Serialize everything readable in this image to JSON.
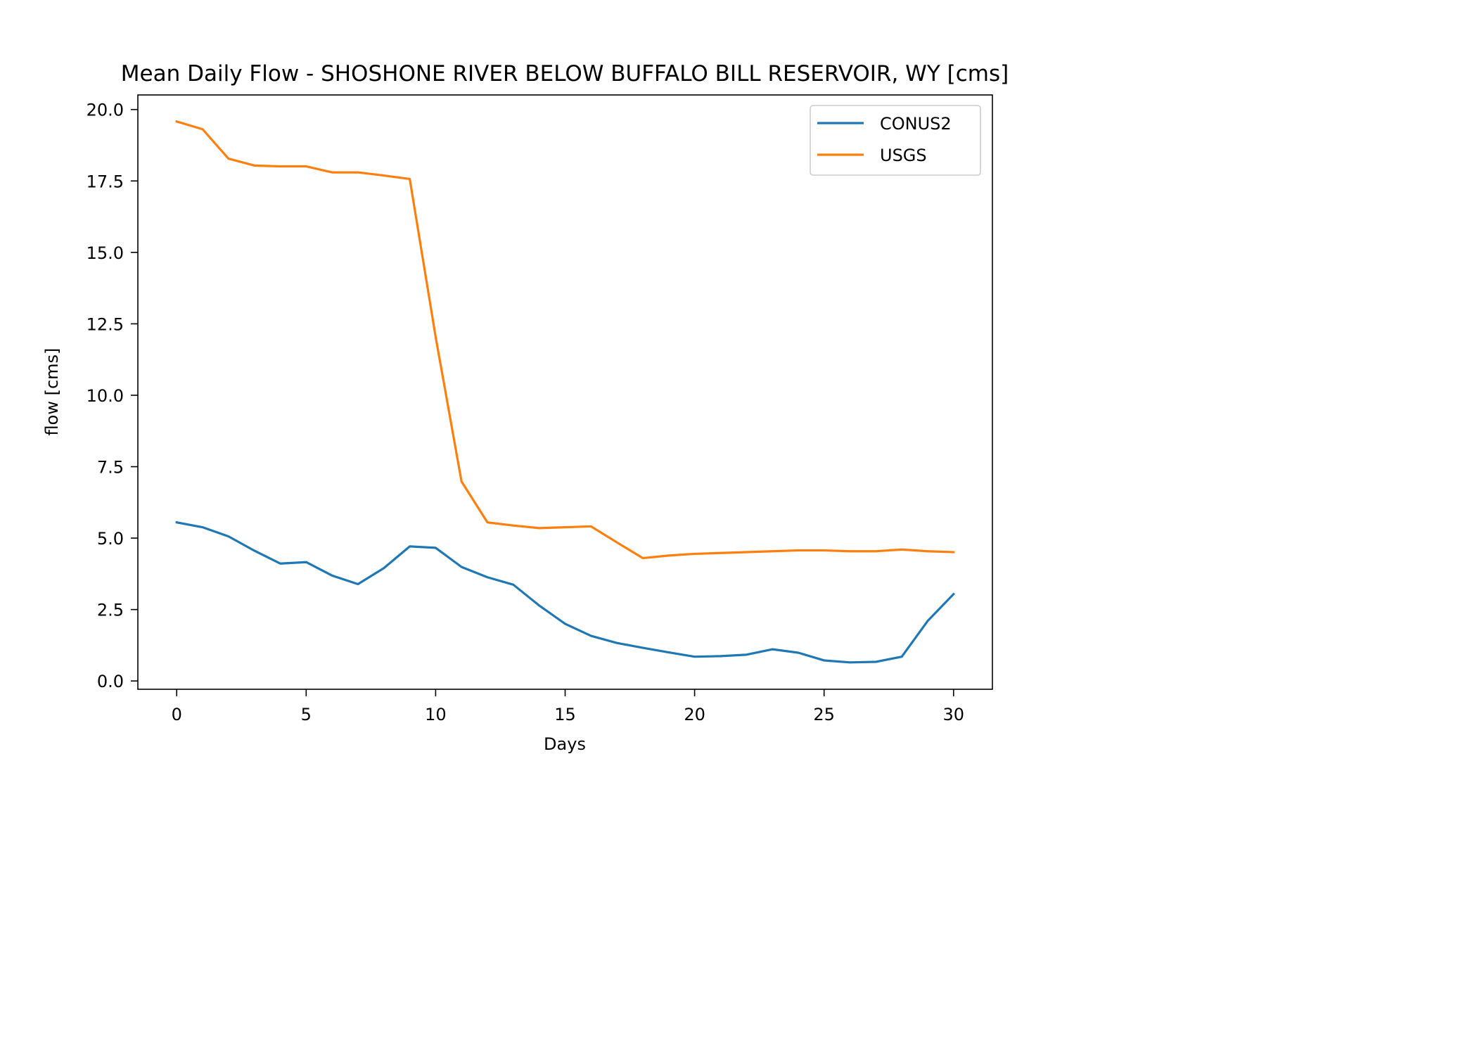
{
  "chart_data": {
    "type": "line",
    "title": "Mean Daily Flow - SHOSHONE RIVER BELOW BUFFALO BILL RESERVOIR, WY [cms]",
    "xlabel": "Days",
    "ylabel": "flow [cms]",
    "xlim": [
      -1.5,
      31.5
    ],
    "ylim": [
      -0.29,
      20.51
    ],
    "x_ticks": [
      0,
      5,
      10,
      15,
      20,
      25,
      30
    ],
    "x_tick_labels": [
      "0",
      "5",
      "10",
      "15",
      "20",
      "25",
      "30"
    ],
    "y_ticks": [
      0,
      2.5,
      5,
      7.5,
      10,
      12.5,
      15,
      17.5,
      20
    ],
    "y_tick_labels": [
      "0.0",
      "2.5",
      "5.0",
      "7.5",
      "10.0",
      "12.5",
      "15.0",
      "17.5",
      "20.0"
    ],
    "grid": false,
    "legend_position": "top-right",
    "x": [
      0,
      1,
      2,
      3,
      4,
      5,
      6,
      7,
      8,
      9,
      10,
      11,
      12,
      13,
      14,
      15,
      16,
      17,
      18,
      19,
      20,
      21,
      22,
      23,
      24,
      25,
      26,
      27,
      28,
      29,
      30
    ],
    "series": [
      {
        "name": "CONUS2",
        "color": "#1f77b4",
        "values": [
          5.55,
          5.38,
          5.06,
          4.56,
          4.11,
          4.16,
          3.69,
          3.39,
          3.95,
          4.71,
          4.66,
          3.99,
          3.63,
          3.37,
          2.64,
          2.0,
          1.58,
          1.33,
          1.16,
          1.0,
          0.85,
          0.87,
          0.92,
          1.11,
          0.99,
          0.72,
          0.65,
          0.67,
          0.85,
          2.1,
          3.04
        ]
      },
      {
        "name": "USGS",
        "color": "#ff7f0e",
        "values": [
          19.58,
          19.31,
          18.28,
          18.04,
          18.01,
          18.01,
          17.8,
          17.8,
          17.69,
          17.57,
          12.04,
          6.98,
          5.55,
          5.44,
          5.35,
          5.38,
          5.41,
          4.85,
          4.3,
          4.39,
          4.45,
          4.48,
          4.51,
          4.54,
          4.57,
          4.57,
          4.54,
          4.54,
          4.6,
          4.54,
          4.51
        ]
      }
    ]
  }
}
